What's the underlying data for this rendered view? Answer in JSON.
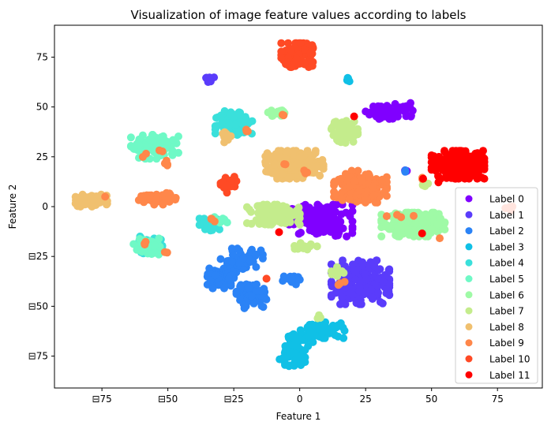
{
  "chart_data": {
    "type": "scatter",
    "title": "Visualization of image feature values according to labels",
    "xlabel": "Feature 1",
    "ylabel": "Feature 2",
    "xlim": [
      -93,
      92
    ],
    "ylim": [
      -91,
      91
    ],
    "xticks": [
      -75,
      -50,
      -25,
      0,
      25,
      50,
      75
    ],
    "yticks": [
      -75,
      -50,
      -25,
      0,
      25,
      50,
      75
    ],
    "xtick_labels": [
      "⊟75",
      "⊟50",
      "⊟25",
      "0",
      "25",
      "50",
      "75"
    ],
    "ytick_labels": [
      "⊟75",
      "⊟50",
      "⊟25",
      "0",
      "25",
      "50",
      "75"
    ],
    "grid": false,
    "legend_position": "lower-right",
    "series": [
      {
        "name": "Label 0",
        "color": "#8000ff",
        "clusters": [
          {
            "cx": 8,
            "cy": -7,
            "rx": 12,
            "ry": 8,
            "n": 130
          },
          {
            "cx": 35,
            "cy": 48,
            "rx": 10,
            "ry": 4,
            "n": 70
          },
          {
            "cx": 40,
            "cy": 18,
            "rx": 1.5,
            "ry": 1.5,
            "n": 3
          }
        ]
      },
      {
        "name": "Label 1",
        "color": "#5a3cfb",
        "clusters": [
          {
            "cx": 23,
            "cy": -38,
            "rx": 11,
            "ry": 11,
            "n": 200
          },
          {
            "cx": -35,
            "cy": 64,
            "rx": 2.5,
            "ry": 1.5,
            "n": 10
          }
        ]
      },
      {
        "name": "Label 2",
        "color": "#2b83f6",
        "clusters": [
          {
            "cx": -22,
            "cy": -27,
            "rx": 8,
            "ry": 6,
            "n": 70
          },
          {
            "cx": -30,
            "cy": -36,
            "rx": 5,
            "ry": 5,
            "n": 60
          },
          {
            "cx": -18,
            "cy": -45,
            "rx": 6,
            "ry": 6,
            "n": 70
          },
          {
            "cx": -3,
            "cy": -37,
            "rx": 4,
            "ry": 2,
            "n": 15
          },
          {
            "cx": 40,
            "cy": 18,
            "rx": 1.5,
            "ry": 1,
            "n": 4
          }
        ]
      },
      {
        "name": "Label 3",
        "color": "#10c0e6",
        "clusters": [
          {
            "cx": -3,
            "cy": -75,
            "rx": 5,
            "ry": 5,
            "n": 60
          },
          {
            "cx": 0,
            "cy": -66,
            "rx": 6,
            "ry": 4,
            "n": 40
          },
          {
            "cx": 10,
            "cy": -62,
            "rx": 7,
            "ry": 4,
            "n": 50
          },
          {
            "cx": 18,
            "cy": 64,
            "rx": 1.5,
            "ry": 1.5,
            "n": 5
          }
        ]
      },
      {
        "name": "Label 4",
        "color": "#3ae0db",
        "clusters": [
          {
            "cx": -25,
            "cy": 42,
            "rx": 7,
            "ry": 6,
            "n": 110
          },
          {
            "cx": -34,
            "cy": -9,
            "rx": 4,
            "ry": 3,
            "n": 30
          },
          {
            "cx": -56,
            "cy": -20,
            "rx": 5,
            "ry": 4,
            "n": 50
          },
          {
            "cx": -60,
            "cy": -17,
            "rx": 2,
            "ry": 2,
            "n": 10
          }
        ]
      },
      {
        "name": "Label 5",
        "color": "#6ff9c6",
        "clusters": [
          {
            "cx": -55,
            "cy": 30,
            "rx": 9,
            "ry": 6,
            "n": 110
          },
          {
            "cx": -30,
            "cy": -7,
            "rx": 3,
            "ry": 2,
            "n": 10
          },
          {
            "cx": -58,
            "cy": -20,
            "rx": 5,
            "ry": 4,
            "n": 40
          }
        ]
      },
      {
        "name": "Label 6",
        "color": "#9ffaa6",
        "clusters": [
          {
            "cx": 43,
            "cy": -9,
            "rx": 12,
            "ry": 6,
            "n": 200
          },
          {
            "cx": -8,
            "cy": 47,
            "rx": 4,
            "ry": 2,
            "n": 20
          }
        ]
      },
      {
        "name": "Label 7",
        "color": "#c4ec8c",
        "clusters": [
          {
            "cx": -10,
            "cy": -4,
            "rx": 10,
            "ry": 5,
            "n": 130
          },
          {
            "cx": 17,
            "cy": 38,
            "rx": 5,
            "ry": 6,
            "n": 60
          },
          {
            "cx": 47,
            "cy": 11,
            "rx": 2,
            "ry": 1.5,
            "n": 8
          },
          {
            "cx": 3,
            "cy": -20,
            "rx": 5,
            "ry": 2,
            "n": 15
          },
          {
            "cx": 14,
            "cy": -33,
            "rx": 3,
            "ry": 3,
            "n": 10
          },
          {
            "cx": 7,
            "cy": -56,
            "rx": 1.5,
            "ry": 1.5,
            "n": 4
          }
        ]
      },
      {
        "name": "Label 8",
        "color": "#f0c06f",
        "clusters": [
          {
            "cx": -2,
            "cy": 21,
            "rx": 11,
            "ry": 7,
            "n": 200
          },
          {
            "cx": -79,
            "cy": 3,
            "rx": 6,
            "ry": 3,
            "n": 70
          },
          {
            "cx": -28,
            "cy": 35,
            "rx": 2,
            "ry": 3,
            "n": 12
          }
        ]
      },
      {
        "name": "Label 9",
        "color": "#ff874a",
        "clusters": [
          {
            "cx": 23,
            "cy": 10,
            "rx": 10,
            "ry": 8,
            "n": 190
          },
          {
            "cx": -54,
            "cy": 4,
            "rx": 7,
            "ry": 3,
            "n": 50
          },
          {
            "cx": -20,
            "cy": 38,
            "rx": 1.5,
            "ry": 1.5,
            "n": 3
          },
          {
            "cx": -6,
            "cy": 46,
            "rx": 1.5,
            "ry": 1,
            "n": 2
          },
          {
            "cx": -5,
            "cy": 21,
            "rx": 1.5,
            "ry": 1.5,
            "n": 2
          },
          {
            "cx": 3,
            "cy": 17,
            "rx": 2,
            "ry": 2,
            "n": 3
          },
          {
            "cx": -49,
            "cy": 22,
            "rx": 3,
            "ry": 2,
            "n": 4
          },
          {
            "cx": -53,
            "cy": 28,
            "rx": 1.5,
            "ry": 1.5,
            "n": 2
          },
          {
            "cx": -58,
            "cy": 26,
            "rx": 1.5,
            "ry": 1.5,
            "n": 2
          },
          {
            "cx": -50,
            "cy": -23,
            "rx": 1.5,
            "ry": 1.5,
            "n": 2
          },
          {
            "cx": -59,
            "cy": -18,
            "rx": 2,
            "ry": 2,
            "n": 3
          },
          {
            "cx": -34,
            "cy": -6,
            "rx": 3,
            "ry": 1.5,
            "n": 4
          },
          {
            "cx": -73,
            "cy": 4,
            "rx": 1,
            "ry": 1,
            "n": 1
          },
          {
            "cx": 36,
            "cy": -5,
            "rx": 3,
            "ry": 1,
            "n": 3
          },
          {
            "cx": 44,
            "cy": -5,
            "rx": 1,
            "ry": 1,
            "n": 1
          },
          {
            "cx": 53,
            "cy": -16,
            "rx": 1,
            "ry": 1,
            "n": 1
          },
          {
            "cx": 15,
            "cy": -38,
            "rx": 2,
            "ry": 2,
            "n": 3
          },
          {
            "cx": 47,
            "cy": 13,
            "rx": 1.5,
            "ry": 1.5,
            "n": 2
          }
        ]
      },
      {
        "name": "Label 10",
        "color": "#ff4a25",
        "clusters": [
          {
            "cx": -1,
            "cy": 76,
            "rx": 6,
            "ry": 6,
            "n": 110
          },
          {
            "cx": -27,
            "cy": 11,
            "rx": 3,
            "ry": 4,
            "n": 35
          },
          {
            "cx": 80,
            "cy": -1,
            "rx": 2,
            "ry": 2,
            "n": 5
          },
          {
            "cx": -12,
            "cy": -36,
            "rx": 1,
            "ry": 1,
            "n": 1
          }
        ]
      },
      {
        "name": "Label 11",
        "color": "#ff0000",
        "clusters": [
          {
            "cx": 60,
            "cy": 21,
            "rx": 10,
            "ry": 7,
            "n": 260
          },
          {
            "cx": -7,
            "cy": -13,
            "rx": 1,
            "ry": 1,
            "n": 1
          },
          {
            "cx": 21,
            "cy": 45,
            "rx": 1,
            "ry": 1,
            "n": 1
          },
          {
            "cx": 46,
            "cy": -13,
            "rx": 1,
            "ry": 1,
            "n": 1
          },
          {
            "cx": 46,
            "cy": 15,
            "rx": 1,
            "ry": 1,
            "n": 1
          },
          {
            "cx": 52,
            "cy": 12,
            "rx": 1,
            "ry": 1,
            "n": 1
          }
        ]
      }
    ]
  }
}
